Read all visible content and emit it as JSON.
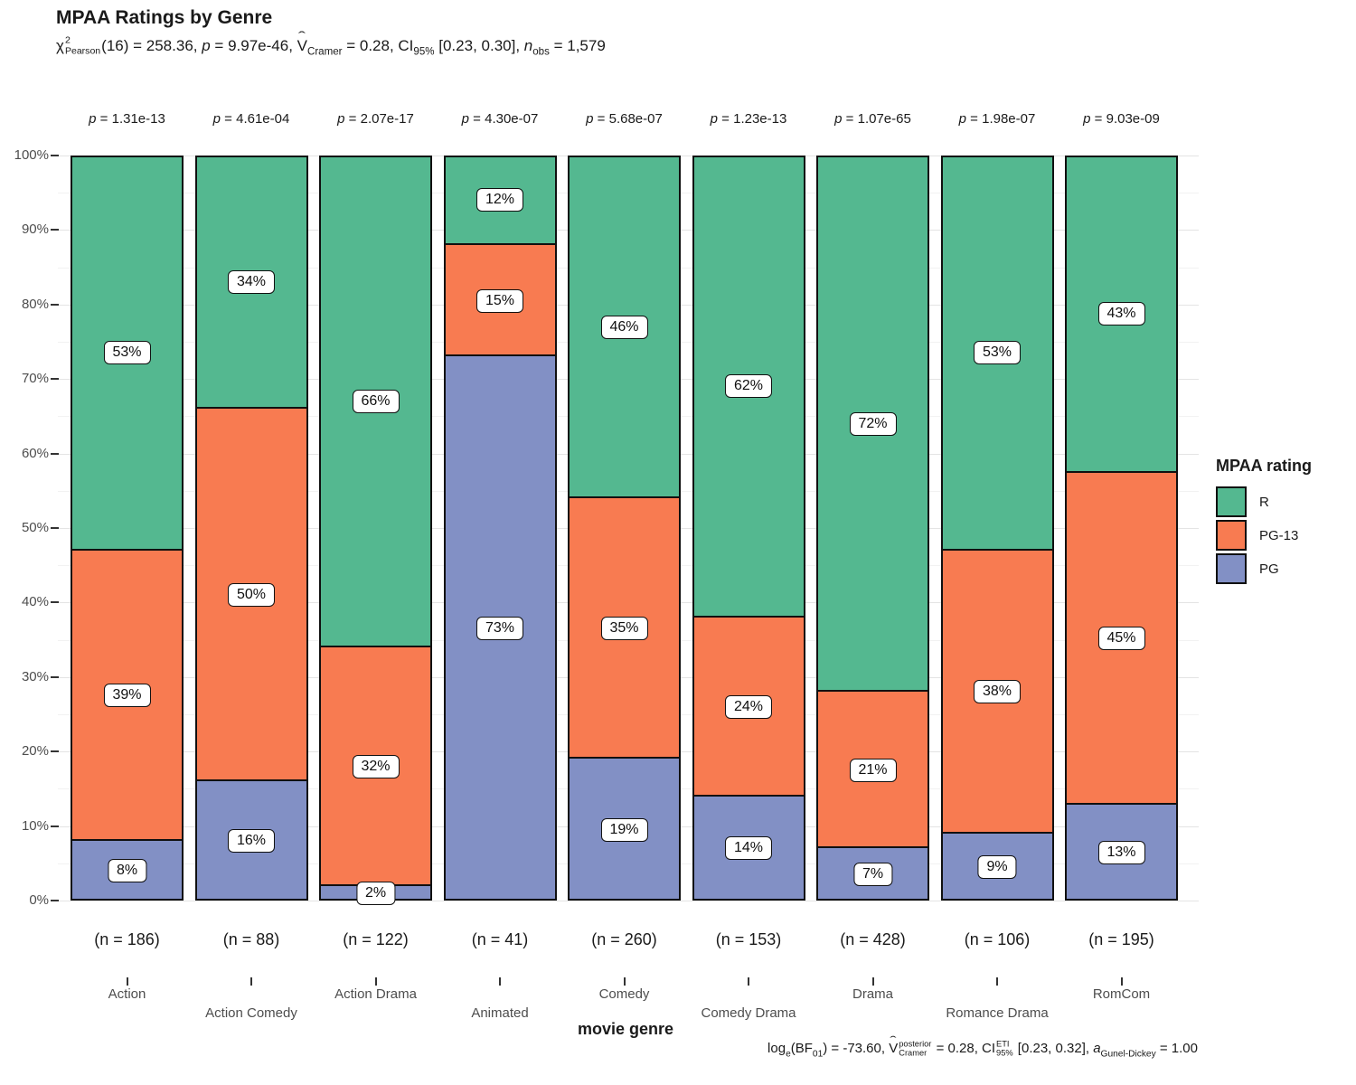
{
  "chart_data": {
    "type": "bar",
    "stacked": true,
    "units": "percent",
    "title": "MPAA Ratings by Genre",
    "xlabel": "movie genre",
    "legend_title": "MPAA rating",
    "legend_position": "right",
    "ylim": [
      0,
      100
    ],
    "grid": true,
    "y_tick_labels": [
      "0%",
      "10%",
      "20%",
      "30%",
      "40%",
      "50%",
      "60%",
      "70%",
      "80%",
      "90%",
      "100%"
    ],
    "categories": [
      "Action",
      "Action Comedy",
      "Action Drama",
      "Animated",
      "Comedy",
      "Comedy Drama",
      "Drama",
      "Romance Drama",
      "RomCom"
    ],
    "sample_size_labels": [
      "(n = 186)",
      "(n = 88)",
      "(n = 122)",
      "(n = 41)",
      "(n = 260)",
      "(n = 153)",
      "(n = 428)",
      "(n = 106)",
      "(n = 195)"
    ],
    "p_value_labels": [
      "p = 1.31e-13",
      "p = 4.61e-04",
      "p = 2.07e-17",
      "p = 4.30e-07",
      "p = 5.68e-07",
      "p = 1.23e-13",
      "p = 1.07e-65",
      "p = 1.98e-07",
      "p = 9.03e-09"
    ],
    "series": [
      {
        "name": "R",
        "color": "#54B890",
        "values": [
          53,
          34,
          66,
          12,
          46,
          62,
          72,
          53,
          43
        ]
      },
      {
        "name": "PG-13",
        "color": "#F87B51",
        "values": [
          39,
          50,
          32,
          15,
          35,
          24,
          21,
          38,
          45
        ]
      },
      {
        "name": "PG",
        "color": "#8290C5",
        "values": [
          8,
          16,
          2,
          73,
          19,
          14,
          7,
          9,
          13
        ]
      }
    ],
    "bar_outline_color": "#101010",
    "gridline_major_color": "#E4E4E4",
    "gridline_minor_color": "#F2F2F2"
  },
  "stats": {
    "subtitle_segments": [
      {
        "t": "χ"
      },
      {
        "stack": {
          "sup": "2",
          "sub": "Pearson"
        }
      },
      {
        "t": "(16) = 258.36, "
      },
      {
        "i": "p"
      },
      {
        "t": " = 9.97e-46, "
      },
      {
        "hat": "V"
      },
      {
        "sub": "Cramer"
      },
      {
        "t": " = 0.28, CI"
      },
      {
        "sub": "95%"
      },
      {
        "t": " [0.23, 0.30], "
      },
      {
        "i": "n"
      },
      {
        "sub": "obs"
      },
      {
        "t": " = 1,579"
      }
    ],
    "caption_segments": [
      {
        "t": "log"
      },
      {
        "sub": "e"
      },
      {
        "t": "(BF"
      },
      {
        "sub": "01"
      },
      {
        "t": ") = -73.60, "
      },
      {
        "hat": "V"
      },
      {
        "stack": {
          "sup": "posterior",
          "sub": "Cramer"
        }
      },
      {
        "t": " = 0.28, CI"
      },
      {
        "stack": {
          "sup": "ETI",
          "sub": "95%"
        }
      },
      {
        "t": " [0.23, 0.32], "
      },
      {
        "i": "a"
      },
      {
        "sub": "Gunel-Dickey"
      },
      {
        "t": " = 1.00"
      }
    ]
  }
}
